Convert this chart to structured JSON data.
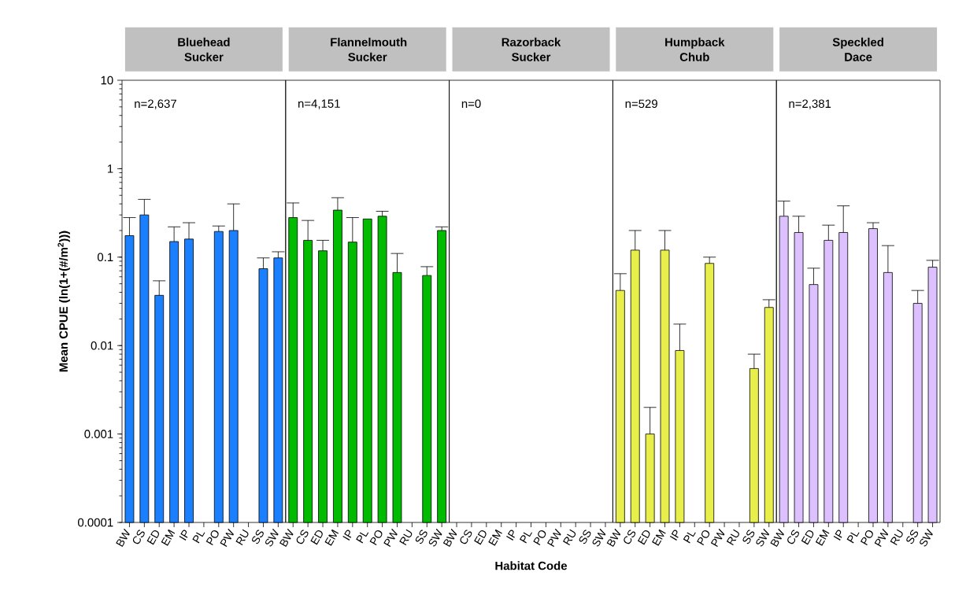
{
  "chart_data": [
    {
      "type": "bar",
      "title": "Bluehead Sucker",
      "ylabel": "Mean CPUE (ln(1+(#/m$^{2}$)))",
      "annotations": [
        "n=2,637"
      ],
      "color": "#1a80ff",
      "log": "y",
      "ylim": [
        0.0001,
        10
      ],
      "yticks": [
        0.0001,
        0.001,
        0.01,
        0.1,
        1,
        10
      ],
      "categories": [
        "BW",
        "CS",
        "ED",
        "EM",
        "IP",
        "PL",
        "PO",
        "PW",
        "RU",
        "SS",
        "SW"
      ],
      "values": [
        0.175,
        0.3,
        0.037,
        0.15,
        0.16,
        null,
        0.195,
        0.2,
        null,
        0.074,
        0.098
      ],
      "errors": [
        [
          0.175,
          0.28
        ],
        [
          0.3,
          0.45
        ],
        [
          0.037,
          0.054
        ],
        [
          0.15,
          0.22
        ],
        [
          0.16,
          0.245
        ],
        null,
        [
          0.195,
          0.225
        ],
        [
          0.2,
          0.4
        ],
        null,
        [
          0.074,
          0.098
        ],
        [
          0.098,
          0.115
        ]
      ]
    },
    {
      "type": "bar",
      "title": "Flannelmouth Sucker",
      "annotations": [
        "n=4,151"
      ],
      "color": "#00bb00",
      "log": "y",
      "ylim": [
        0.0001,
        10
      ],
      "tick_labels": "x",
      "categories": [
        "BW",
        "CS",
        "ED",
        "EM",
        "IP",
        "PL",
        "PO",
        "PW",
        "RU",
        "SS",
        "SW"
      ],
      "values": [
        0.28,
        0.155,
        0.118,
        0.34,
        0.148,
        0.27,
        0.29,
        0.067,
        null,
        0.062,
        0.2
      ],
      "errors": [
        [
          0.28,
          0.41
        ],
        [
          0.155,
          0.26
        ],
        [
          0.118,
          0.155
        ],
        [
          0.34,
          0.47
        ],
        [
          0.148,
          0.28
        ],
        null,
        [
          0.29,
          0.33
        ],
        [
          0.067,
          0.11
        ],
        null,
        [
          0.062,
          0.078
        ],
        [
          0.2,
          0.22
        ]
      ]
    },
    {
      "type": "bar",
      "title": "Razorback Sucker",
      "xlabel": "Habitat Code",
      "annotations": [
        "n=0"
      ],
      "color": "#1a80ff",
      "log": "y",
      "ylim": [
        0.0001,
        10
      ],
      "tick_labels": "x",
      "categories": [
        "BW",
        "CS",
        "ED",
        "EM",
        "IP",
        "PL",
        "PO",
        "PW",
        "RU",
        "SS",
        "SW"
      ],
      "values": [
        null,
        null,
        null,
        null,
        null,
        null,
        null,
        null,
        null,
        null,
        null
      ]
    },
    {
      "type": "bar",
      "title": "Humpback Chub",
      "annotations": [
        "n=529"
      ],
      "color": "#e8ee4a",
      "log": "y",
      "ylim": [
        0.0001,
        10
      ],
      "tick_labels": "x",
      "categories": [
        "BW",
        "CS",
        "ED",
        "EM",
        "IP",
        "PL",
        "PO",
        "PW",
        "RU",
        "SS",
        "SW"
      ],
      "values": [
        0.042,
        0.12,
        0.001,
        0.12,
        0.0088,
        null,
        0.085,
        null,
        null,
        0.0055,
        0.027
      ],
      "errors": [
        [
          0.042,
          0.065
        ],
        [
          0.12,
          0.2
        ],
        [
          0.001,
          0.002
        ],
        [
          0.12,
          0.2
        ],
        [
          0.0088,
          0.0175
        ],
        null,
        [
          0.085,
          0.1
        ],
        null,
        null,
        [
          0.0055,
          0.008
        ],
        [
          0.027,
          0.033
        ]
      ]
    },
    {
      "type": "bar",
      "title": "Speckled Dace",
      "annotations": [
        "n=2,381"
      ],
      "color": "#dcc0ff",
      "log": "y",
      "ylim": [
        0.0001,
        10
      ],
      "tick_labels": "x",
      "categories": [
        "BW",
        "CS",
        "ED",
        "EM",
        "IP",
        "PL",
        "PO",
        "PW",
        "RU",
        "SS",
        "SW"
      ],
      "values": [
        0.29,
        0.19,
        0.049,
        0.155,
        0.19,
        null,
        0.21,
        0.067,
        null,
        0.03,
        0.077
      ],
      "errors": [
        [
          0.29,
          0.43
        ],
        [
          0.19,
          0.29
        ],
        [
          0.049,
          0.075
        ],
        [
          0.155,
          0.23
        ],
        [
          0.19,
          0.38
        ],
        null,
        [
          0.21,
          0.245
        ],
        [
          0.067,
          0.135
        ],
        null,
        [
          0.03,
          0.042
        ],
        [
          0.077,
          0.092
        ]
      ]
    }
  ]
}
